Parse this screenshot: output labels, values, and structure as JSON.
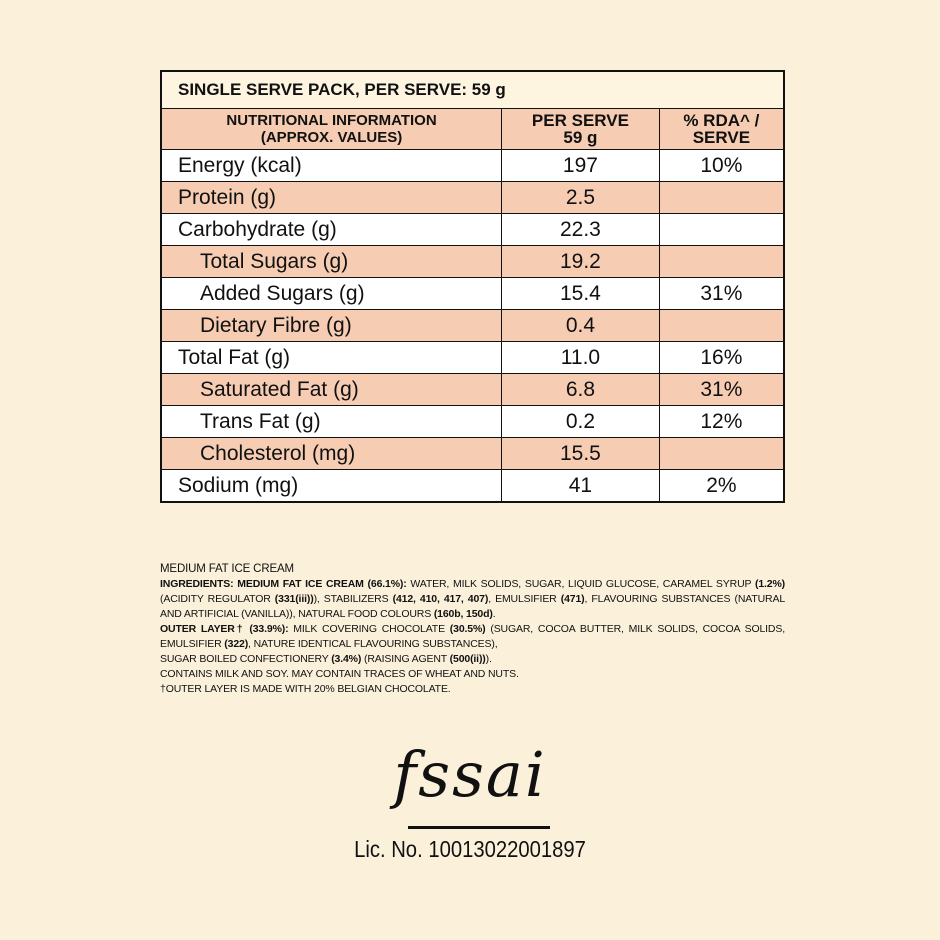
{
  "table": {
    "title": "SINGLE SERVE PACK, PER SERVE: 59 g",
    "header": [
      [
        "NUTRITIONAL INFORMATION",
        "(APPROX. VALUES)"
      ],
      [
        "PER SERVE",
        "59 g"
      ],
      [
        "% RDA^ /",
        "SERVE"
      ]
    ],
    "rows": [
      {
        "label": "Energy (kcal)",
        "level": 0,
        "per_serve": "197",
        "rda": "10%"
      },
      {
        "label": "Protein (g)",
        "level": 0,
        "per_serve": "2.5",
        "rda": null
      },
      {
        "label": "Carbohydrate (g)",
        "level": 0,
        "per_serve": "22.3",
        "rda": null
      },
      {
        "label": "Total Sugars (g)",
        "level": 1,
        "per_serve": "19.2",
        "rda": null
      },
      {
        "label": "Added Sugars (g)",
        "level": 1,
        "per_serve": "15.4",
        "rda": "31%"
      },
      {
        "label": "Dietary Fibre (g)",
        "level": 1,
        "per_serve": "0.4",
        "rda": null
      },
      {
        "label": "Total Fat (g)",
        "level": 0,
        "per_serve": "11.0",
        "rda": "16%"
      },
      {
        "label": "Saturated Fat (g)",
        "level": 1,
        "per_serve": "6.8",
        "rda": "31%"
      },
      {
        "label": "Trans Fat (g)",
        "level": 1,
        "per_serve": "0.2",
        "rda": "12%"
      },
      {
        "label": "Cholesterol (mg)",
        "level": 1,
        "per_serve": "15.5",
        "rda": null
      },
      {
        "label": "Sodium (mg)",
        "level": 0,
        "per_serve": "41",
        "rda": "2%"
      }
    ]
  },
  "ingredients": {
    "heading": "MEDIUM FAT ICE CREAM",
    "paragraphs": [
      [
        {
          "text": "INGREDIENTS: MEDIUM FAT ICE CREAM (66.1%):",
          "bold": true
        },
        {
          "text": " WATER, MILK SOLIDS, SUGAR, LIQUID GLUCOSE, CARAMEL SYRUP ",
          "bold": false
        },
        {
          "text": "(1.2%)",
          "bold": true
        },
        {
          "text": " (ACIDITY REGULATOR ",
          "bold": false
        },
        {
          "text": "(331(iii))",
          "bold": true
        },
        {
          "text": "), STABILIZERS ",
          "bold": false
        },
        {
          "text": "(412, 410, 417, 407)",
          "bold": true
        },
        {
          "text": ", EMULSIFIER ",
          "bold": false
        },
        {
          "text": "(471)",
          "bold": true
        },
        {
          "text": ", FLAVOURING SUBSTANCES (NATURAL AND ARTIFICIAL (VANILLA)), NATURAL FOOD COLOURS ",
          "bold": false
        },
        {
          "text": "(160b, 150d)",
          "bold": true
        },
        {
          "text": ".",
          "bold": false
        }
      ],
      [
        {
          "text": "OUTER LAYER† (33.9%):",
          "bold": true
        },
        {
          "text": " MILK COVERING CHOCOLATE ",
          "bold": false
        },
        {
          "text": "(30.5%)",
          "bold": true
        },
        {
          "text": " (SUGAR, COCOA BUTTER, MILK SOLIDS, COCOA SOLIDS, EMULSIFIER ",
          "bold": false
        },
        {
          "text": "(322)",
          "bold": true
        },
        {
          "text": ", NATURE IDENTICAL FLAVOURING SUBSTANCES),",
          "bold": false
        }
      ],
      [
        {
          "text": "SUGAR BOILED CONFECTIONERY ",
          "bold": false
        },
        {
          "text": "(3.4%)",
          "bold": true
        },
        {
          "text": " (RAISING AGENT ",
          "bold": false
        },
        {
          "text": "(500(ii))",
          "bold": true
        },
        {
          "text": ").",
          "bold": false
        }
      ],
      [
        {
          "text": "CONTAINS MILK AND SOY. MAY CONTAIN TRACES OF WHEAT AND NUTS.",
          "bold": false
        }
      ],
      [
        {
          "text": "†OUTER LAYER IS MADE WITH 20% BELGIAN CHOCOLATE.",
          "bold": false
        }
      ]
    ]
  },
  "fssai": {
    "logo": "fssai",
    "license": "Lic. No. 10013022001897"
  }
}
